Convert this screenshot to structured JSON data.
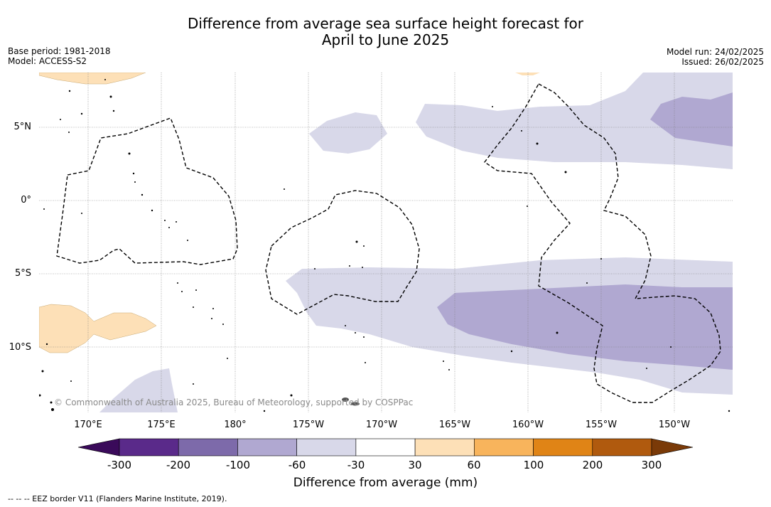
{
  "title": {
    "line1": "Difference from average sea surface height forecast for",
    "line2": "April to June 2025"
  },
  "meta": {
    "base_period": "Base period: 1981-2018",
    "model": "Model: ACCESS-S2",
    "model_run": "Model run: 24/02/2025",
    "issued": "Issued: 26/02/2025"
  },
  "map": {
    "lat_labels": [
      "5°N",
      "0°",
      "5°S",
      "10°S"
    ],
    "lon_labels": [
      "170°E",
      "175°E",
      "180°",
      "175°W",
      "170°W",
      "165°W",
      "160°W",
      "155°W",
      "150°W"
    ],
    "copyright": "© Commonwealth of Australia 2025, Bureau of Meteorology, supported by COSPPac"
  },
  "colorbar": {
    "ticks": [
      "-300",
      "-200",
      "-100",
      "-60",
      "-30",
      "30",
      "60",
      "100",
      "200",
      "300"
    ],
    "colors": [
      "#5a2a8a",
      "#7d6aaa",
      "#b0a8d1",
      "#d8d8e9",
      "#ffffff",
      "#fde0b7",
      "#f8b45c",
      "#e08416",
      "#b05a0e"
    ],
    "under_color": "#3a0a5a",
    "over_color": "#7a3a08",
    "label": "Difference from average (mm)"
  },
  "footer": "-- -- -- EEZ border V11 (Flanders Marine Institute, 2019)."
}
